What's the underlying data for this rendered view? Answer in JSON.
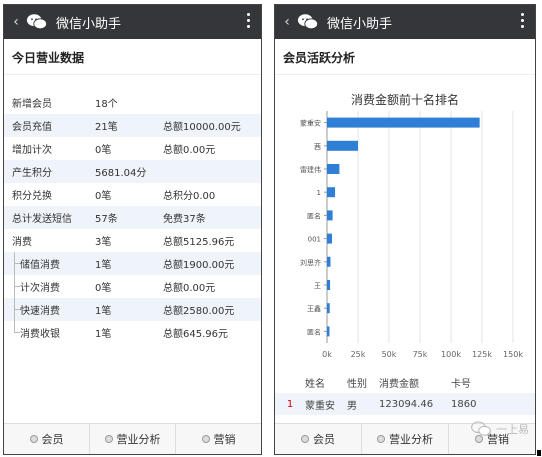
{
  "app": {
    "title": "微信小助手",
    "back": "‹"
  },
  "left": {
    "section_title": "今日营业数据",
    "rows": [
      {
        "label": "新增会员",
        "count": "18个",
        "total": ""
      },
      {
        "label": "会员充值",
        "count": "21笔",
        "total": "总额10000.00元"
      },
      {
        "label": "增加计次",
        "count": "0笔",
        "total": "总额0.00元"
      },
      {
        "label": "产生积分",
        "count": "5681.04分",
        "total": ""
      },
      {
        "label": "积分兑换",
        "count": "0笔",
        "total": "总积分0.00"
      },
      {
        "label": "总计发送短信",
        "count": "57条",
        "total": "免费37条"
      },
      {
        "label": "消费",
        "count": "3笔",
        "total": "总额5125.96元"
      },
      {
        "label": "储值消费",
        "count": "1笔",
        "total": "总额1900.00元"
      },
      {
        "label": "计次消费",
        "count": "0笔",
        "total": "总额0.00元"
      },
      {
        "label": "快速消费",
        "count": "1笔",
        "total": "总额2580.00元"
      },
      {
        "label": "消费收银",
        "count": "1笔",
        "total": "总额645.96元"
      }
    ],
    "tabs": [
      "会员",
      "营业分析",
      "营销"
    ]
  },
  "right": {
    "section_title": "会员活跃分析",
    "chart_data": {
      "type": "bar",
      "orientation": "horizontal",
      "title": "消费金额前十名排名",
      "categories": [
        "蒙重安",
        "茜",
        "雷建伟",
        "1",
        "匿名",
        "001",
        "刘思齐",
        "王",
        "王鑫",
        "匿名"
      ],
      "values": [
        123094.46,
        25000,
        10000,
        6500,
        4500,
        4000,
        2800,
        2500,
        2200,
        2000
      ],
      "x_ticks": [
        "0k",
        "25k",
        "50k",
        "75k",
        "100k",
        "125k",
        "150k"
      ],
      "xlim": [
        0,
        150000
      ],
      "grid": true,
      "color": "#2f7fd6"
    },
    "table": {
      "headers": [
        "姓名",
        "性别",
        "消费金额",
        "卡号"
      ],
      "rows": [
        {
          "rank": "1",
          "name": "蒙重安",
          "gender": "男",
          "amount": "123094.46",
          "card": "1860"
        }
      ]
    },
    "tabs": [
      "会员",
      "营业分析",
      "营销"
    ],
    "watermark": "一上易"
  }
}
